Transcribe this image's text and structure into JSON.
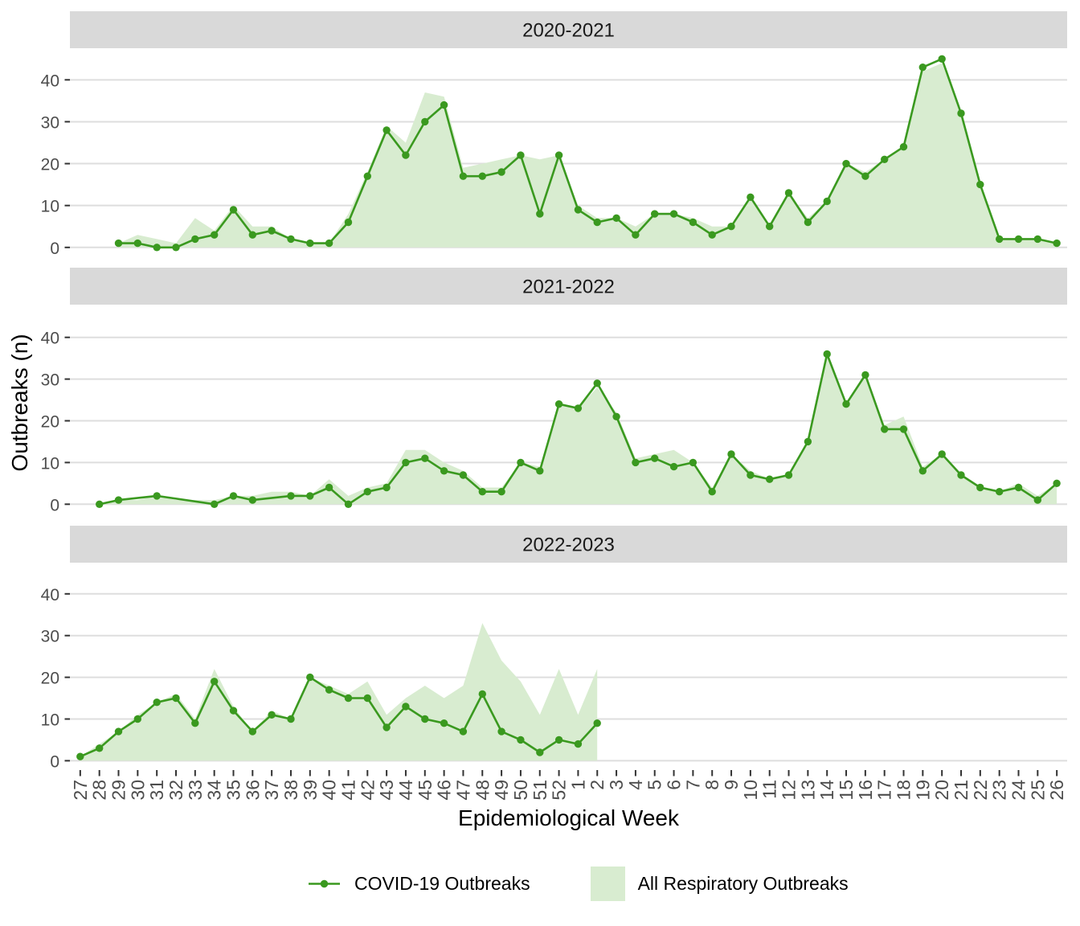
{
  "chart_data": {
    "type": "area",
    "marks": [
      "area",
      "line+points"
    ],
    "title": "",
    "xlabel": "Epidemiological Week",
    "ylabel": "Outbreaks (n)",
    "x_categories": [
      "27",
      "28",
      "29",
      "30",
      "31",
      "32",
      "33",
      "34",
      "35",
      "36",
      "37",
      "38",
      "39",
      "40",
      "41",
      "42",
      "43",
      "44",
      "45",
      "46",
      "47",
      "48",
      "49",
      "50",
      "51",
      "52",
      "1",
      "2",
      "3",
      "4",
      "5",
      "6",
      "7",
      "8",
      "9",
      "10",
      "11",
      "12",
      "13",
      "14",
      "15",
      "16",
      "17",
      "18",
      "19",
      "20",
      "21",
      "22",
      "23",
      "24",
      "25",
      "26"
    ],
    "yticks": [
      0,
      10,
      20,
      30,
      40
    ],
    "ylim": [
      -2.5,
      47.5
    ],
    "grid": "horizontal-major-only",
    "legend_position": "bottom",
    "facets": [
      {
        "title": "2020-2021",
        "series": [
          {
            "name": "COVID-19 Outbreaks",
            "type": "line+points",
            "weeks": [
              "29",
              "30",
              "31",
              "32",
              "33",
              "34",
              "35",
              "36",
              "37",
              "38",
              "39",
              "40",
              "41",
              "42",
              "43",
              "44",
              "45",
              "46",
              "47",
              "48",
              "49",
              "50",
              "51",
              "52",
              "1",
              "2",
              "3",
              "4",
              "5",
              "6",
              "7",
              "8",
              "9",
              "10",
              "11",
              "12",
              "13",
              "14",
              "15",
              "16",
              "17",
              "18",
              "19",
              "20",
              "21",
              "22",
              "23",
              "24",
              "25",
              "26"
            ],
            "values": [
              1,
              1,
              0,
              0,
              2,
              3,
              9,
              3,
              4,
              2,
              1,
              1,
              6,
              17,
              28,
              22,
              30,
              34,
              17,
              17,
              18,
              22,
              8,
              22,
              9,
              6,
              7,
              3,
              8,
              8,
              6,
              3,
              5,
              12,
              5,
              13,
              6,
              11,
              20,
              17,
              21,
              24,
              43,
              45,
              32,
              15,
              2,
              2,
              2,
              1
            ]
          },
          {
            "name": "All Respiratory Outbreaks",
            "type": "area",
            "weeks": [
              "29",
              "30",
              "31",
              "32",
              "33",
              "34",
              "35",
              "36",
              "37",
              "38",
              "39",
              "40",
              "41",
              "42",
              "43",
              "44",
              "45",
              "46",
              "47",
              "48",
              "49",
              "50",
              "51",
              "52",
              "1",
              "2",
              "3",
              "4",
              "5",
              "6",
              "7",
              "8",
              "9",
              "10",
              "11",
              "12",
              "13",
              "14",
              "15",
              "16",
              "17",
              "18",
              "19",
              "20",
              "21",
              "22",
              "23",
              "24",
              "25",
              "26"
            ],
            "values": [
              1,
              3,
              2,
              1,
              7,
              4,
              10,
              5,
              5,
              2,
              1,
              1,
              8,
              18,
              29,
              25,
              37,
              36,
              19,
              20,
              21,
              22,
              21,
              22,
              10,
              7,
              7,
              5,
              8,
              8,
              7,
              5,
              5,
              12,
              5,
              13,
              7,
              11,
              20,
              18,
              21,
              24,
              42,
              44,
              32,
              15,
              2,
              2,
              2,
              1
            ]
          }
        ]
      },
      {
        "title": "2021-2022",
        "series": [
          {
            "name": "COVID-19 Outbreaks",
            "type": "line+points",
            "weeks": [
              "28",
              "29",
              "31",
              "34",
              "35",
              "36",
              "38",
              "39",
              "40",
              "41",
              "42",
              "43",
              "44",
              "45",
              "46",
              "47",
              "48",
              "49",
              "50",
              "51",
              "52",
              "1",
              "2",
              "3",
              "4",
              "5",
              "6",
              "7",
              "8",
              "9",
              "10",
              "11",
              "12",
              "13",
              "14",
              "15",
              "16",
              "17",
              "18",
              "19",
              "20",
              "21",
              "22",
              "23",
              "24",
              "25",
              "26"
            ],
            "values": [
              0,
              1,
              2,
              0,
              2,
              1,
              2,
              2,
              4,
              0,
              3,
              4,
              10,
              11,
              8,
              7,
              3,
              3,
              10,
              8,
              24,
              23,
              29,
              21,
              10,
              11,
              9,
              10,
              3,
              12,
              7,
              6,
              7,
              15,
              36,
              24,
              31,
              18,
              18,
              8,
              12,
              7,
              4,
              3,
              4,
              1,
              5
            ]
          },
          {
            "name": "All Respiratory Outbreaks",
            "type": "area",
            "weeks": [
              "28",
              "29",
              "30",
              "31",
              "32",
              "33",
              "34",
              "35",
              "36",
              "37",
              "38",
              "39",
              "40",
              "41",
              "42",
              "43",
              "44",
              "45",
              "46",
              "47",
              "48",
              "49",
              "50",
              "51",
              "52",
              "1",
              "2",
              "3",
              "4",
              "5",
              "6",
              "7",
              "8",
              "9",
              "10",
              "11",
              "12",
              "13",
              "14",
              "15",
              "16",
              "17",
              "18",
              "19",
              "20",
              "21",
              "22",
              "23",
              "24",
              "25",
              "26"
            ],
            "values": [
              0,
              1,
              1,
              2,
              1,
              1,
              1,
              2,
              2,
              3,
              3,
              2,
              6,
              2,
              4,
              5,
              13,
              13,
              10,
              8,
              4,
              4,
              10,
              9,
              24,
              23,
              28,
              22,
              11,
              12,
              13,
              10,
              4,
              12,
              8,
              6,
              7,
              15,
              36,
              24,
              31,
              19,
              21,
              9,
              12,
              7,
              4,
              3,
              5,
              2,
              5
            ]
          }
        ]
      },
      {
        "title": "2022-2023",
        "series": [
          {
            "name": "COVID-19 Outbreaks",
            "type": "line+points",
            "weeks": [
              "27",
              "28",
              "29",
              "30",
              "31",
              "32",
              "33",
              "34",
              "35",
              "36",
              "37",
              "38",
              "39",
              "40",
              "41",
              "42",
              "43",
              "44",
              "45",
              "46",
              "47",
              "48",
              "49",
              "50",
              "51",
              "52",
              "1",
              "2"
            ],
            "values": [
              1,
              3,
              7,
              10,
              14,
              15,
              9,
              19,
              12,
              7,
              11,
              10,
              20,
              17,
              15,
              15,
              8,
              13,
              10,
              9,
              7,
              16,
              7,
              5,
              2,
              5,
              4,
              9
            ]
          },
          {
            "name": "All Respiratory Outbreaks",
            "type": "area",
            "weeks": [
              "27",
              "28",
              "29",
              "30",
              "31",
              "32",
              "33",
              "34",
              "35",
              "36",
              "37",
              "38",
              "39",
              "40",
              "41",
              "42",
              "43",
              "44",
              "45",
              "46",
              "47",
              "48",
              "49",
              "50",
              "51",
              "52",
              "1",
              "2"
            ],
            "values": [
              1,
              4,
              7,
              11,
              14,
              16,
              10,
              22,
              13,
              7,
              12,
              10,
              20,
              18,
              16,
              19,
              11,
              15,
              18,
              15,
              18,
              33,
              24,
              19,
              11,
              22,
              11,
              22
            ]
          }
        ]
      }
    ],
    "legend": [
      {
        "label": "COVID-19 Outbreaks",
        "key": "line-point"
      },
      {
        "label": "All Respiratory Outbreaks",
        "key": "area"
      }
    ],
    "colors": {
      "line": "#3a991f",
      "area_fill": "#d8ecd0",
      "strip_bg": "#d9d9d9",
      "grid": "#dedede",
      "axis_text": "#4d4d4d",
      "tick": "#333333",
      "strip_text": "#1a1a1a",
      "title_text": "#000000"
    }
  }
}
